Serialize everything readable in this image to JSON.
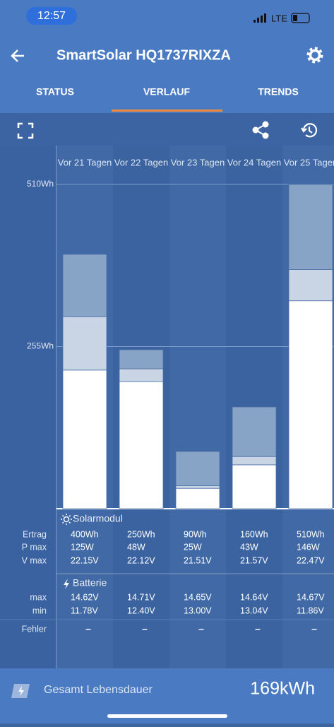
{
  "status_bar": {
    "time": "12:57",
    "network": "LTE"
  },
  "header": {
    "title": "SmartSolar HQ1737RIXZA"
  },
  "tabs": [
    "STATUS",
    "VERLAUF",
    "TRENDS"
  ],
  "chart_data": {
    "type": "bar",
    "stacked": true,
    "categories": [
      "Vor 21 Tagen",
      "Vor 22 Tagen",
      "Vor 23 Tagen",
      "Vor 24 Tagen",
      "Vor 25 Tagen"
    ],
    "series": [
      {
        "color": "#ffffff",
        "values": [
          218,
          200,
          32,
          69,
          327
        ]
      },
      {
        "color": "#c9d5e4",
        "values": [
          84,
          20,
          4,
          13,
          49
        ]
      },
      {
        "color": "#87a4c6",
        "values": [
          98,
          30,
          54,
          78,
          134
        ]
      }
    ],
    "ylim": [
      0,
      510
    ],
    "yticks": [
      {
        "value": 255,
        "label": "255Wh"
      },
      {
        "value": 510,
        "label": "510Wh"
      }
    ],
    "grid": true
  },
  "table": {
    "sections": [
      {
        "title": "Solarmodul",
        "rows": [
          {
            "label": "Ertrag",
            "values": [
              "400Wh",
              "250Wh",
              "90Wh",
              "160Wh",
              "510Wh"
            ]
          },
          {
            "label": "P max",
            "values": [
              "125W",
              "48W",
              "25W",
              "43W",
              "146W"
            ]
          },
          {
            "label": "V max",
            "values": [
              "22.15V",
              "22.12V",
              "21.51V",
              "21.57V",
              "22.47V"
            ]
          }
        ]
      },
      {
        "title": "Batterie",
        "rows": [
          {
            "label": "max",
            "values": [
              "14.62V",
              "14.71V",
              "14.65V",
              "14.64V",
              "14.67V"
            ]
          },
          {
            "label": "min",
            "values": [
              "11.78V",
              "12.40V",
              "13.00V",
              "13.04V",
              "11.86V"
            ]
          }
        ]
      }
    ],
    "error_row": {
      "label": "Fehler",
      "values": [
        "–",
        "–",
        "–",
        "–",
        "–"
      ]
    }
  },
  "footer": {
    "label": "Gesamt Lebensdauer",
    "value": "169kWh"
  }
}
